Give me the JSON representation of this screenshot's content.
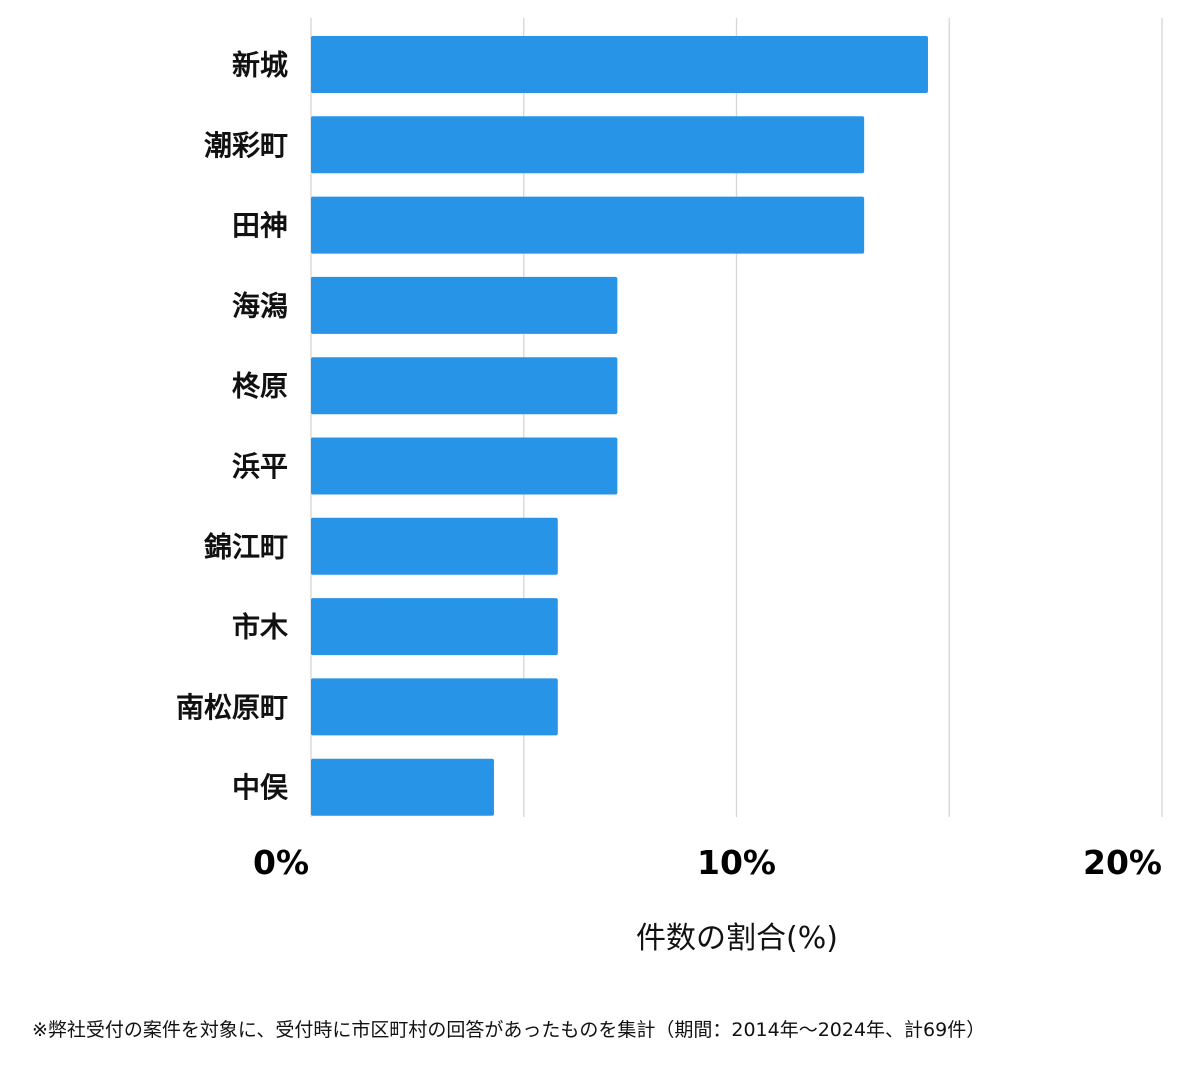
{
  "chart_data": {
    "type": "bar",
    "orientation": "horizontal",
    "categories": [
      "新城",
      "潮彩町",
      "田神",
      "海潟",
      "柊原",
      "浜平",
      "錦江町",
      "市木",
      "南松原町",
      "中俣"
    ],
    "values": [
      14.5,
      13.0,
      13.0,
      7.2,
      7.2,
      7.2,
      5.8,
      5.8,
      5.8,
      4.3
    ],
    "xlim": [
      0,
      20
    ],
    "xticks": [
      0,
      10,
      20
    ],
    "xtick_labels": [
      "0%",
      "10%",
      "20%"
    ],
    "gridlines_at": [
      0,
      5,
      10,
      15,
      20
    ],
    "xlabel": "件数の割合(%)",
    "ylabel": "",
    "title": "",
    "bar_color": "#2794e8",
    "grid": true
  },
  "footnote": "※弊社受付の案件を対象に、受付時に市区町村の回答があったものを集計（期間：2014年～2024年、計69件）"
}
